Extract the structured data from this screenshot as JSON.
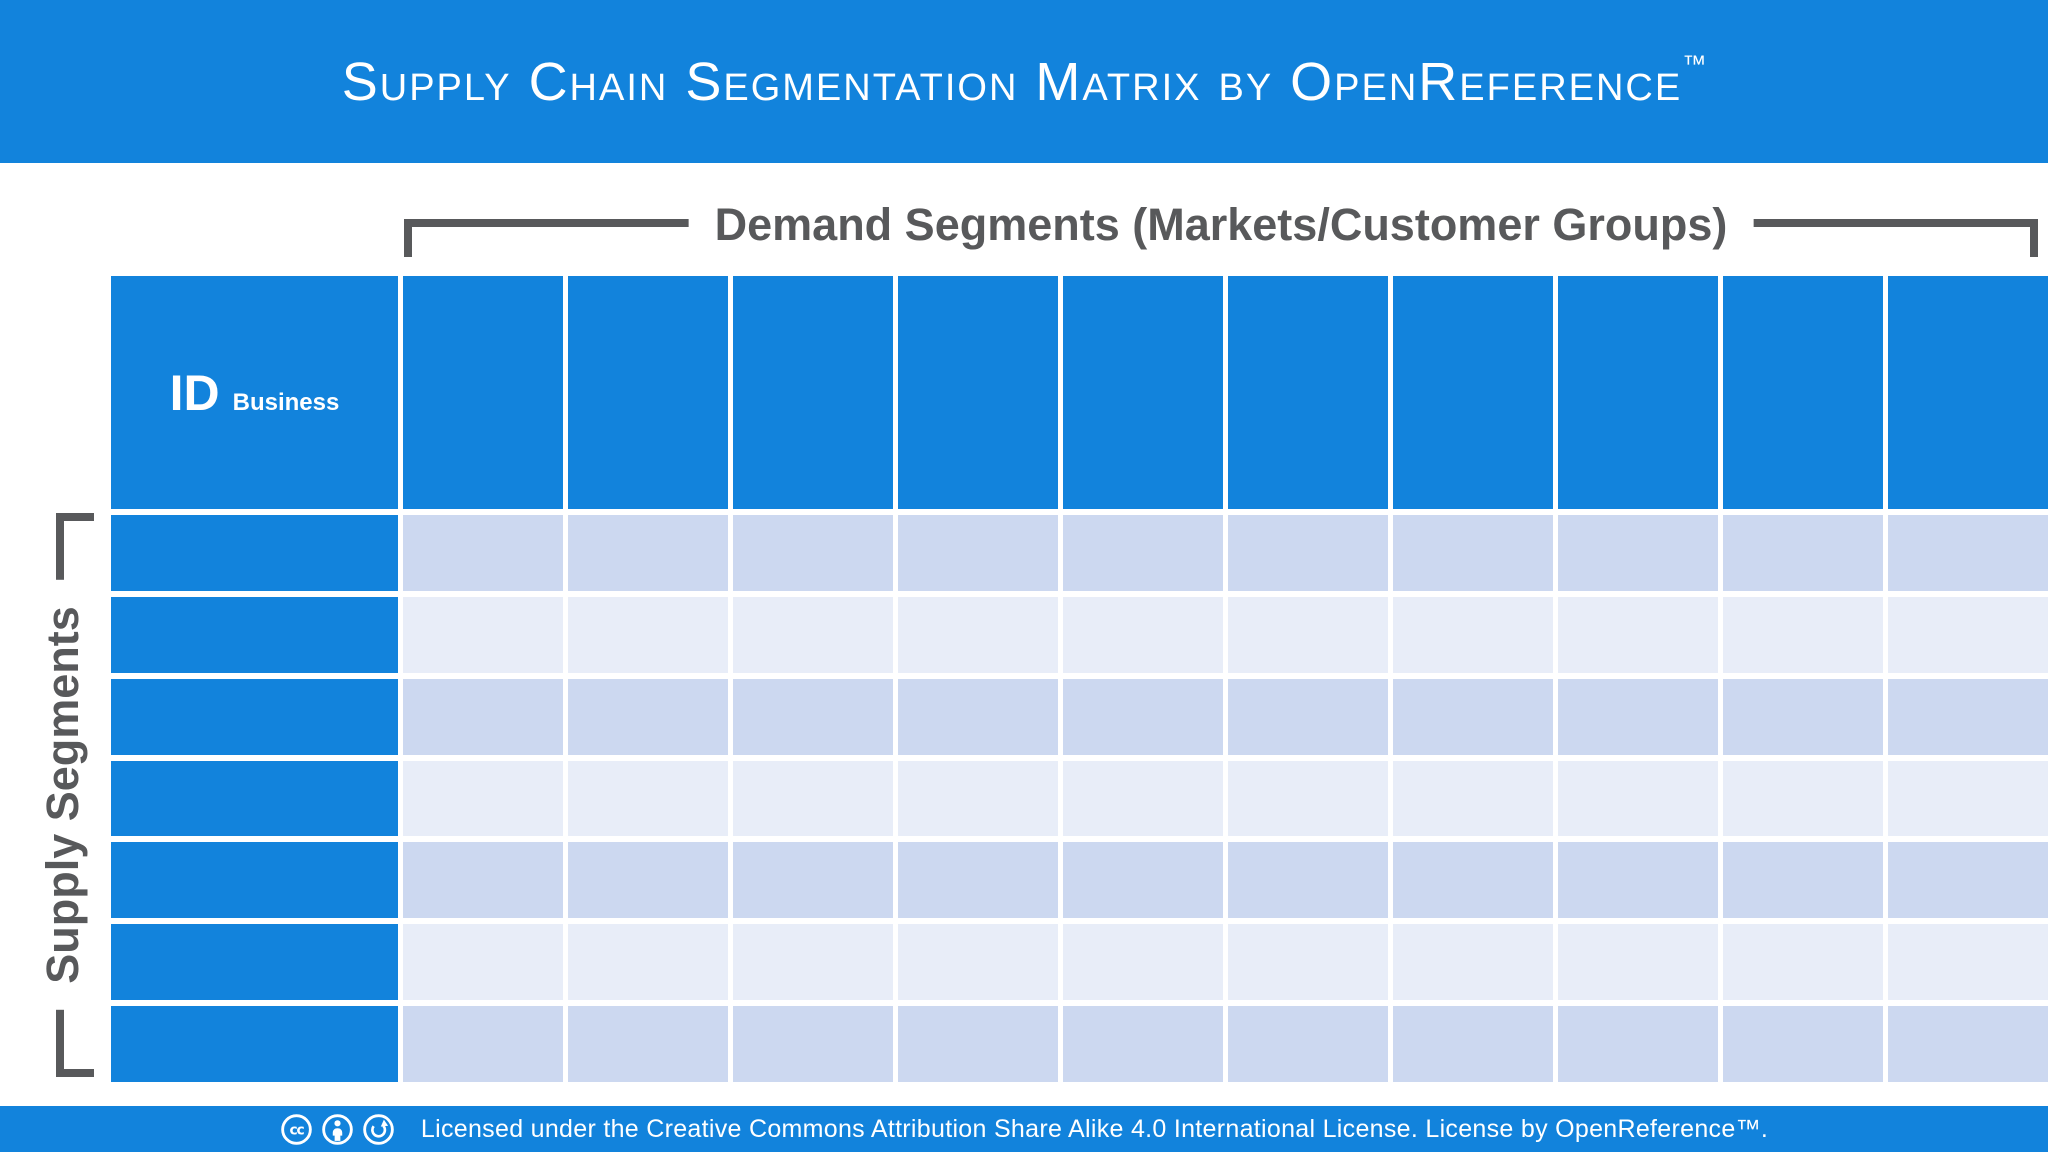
{
  "banner": {
    "title": "Supply Chain Segmentation Matrix by OpenReference",
    "trademark": "™"
  },
  "matrix": {
    "demand_axis_label": "Demand Segments (Markets/Customer Groups)",
    "supply_axis_label": "Supply Segments",
    "corner_cell": {
      "id_label": "ID",
      "sub_label": "Business"
    },
    "demand_columns": 10,
    "supply_rows": 7
  },
  "footer": {
    "license_text": "Licensed under the Creative Commons Attribution Share Alike 4.0 International License. License by OpenReference™.",
    "icons": [
      "cc-icon",
      "attribution-icon",
      "share-alike-icon"
    ]
  },
  "colors": {
    "brand_blue": "#1283DC",
    "row_light": "#CCD8F0",
    "row_lighter": "#E8EDF8",
    "bracket_gray": "#58595B"
  }
}
